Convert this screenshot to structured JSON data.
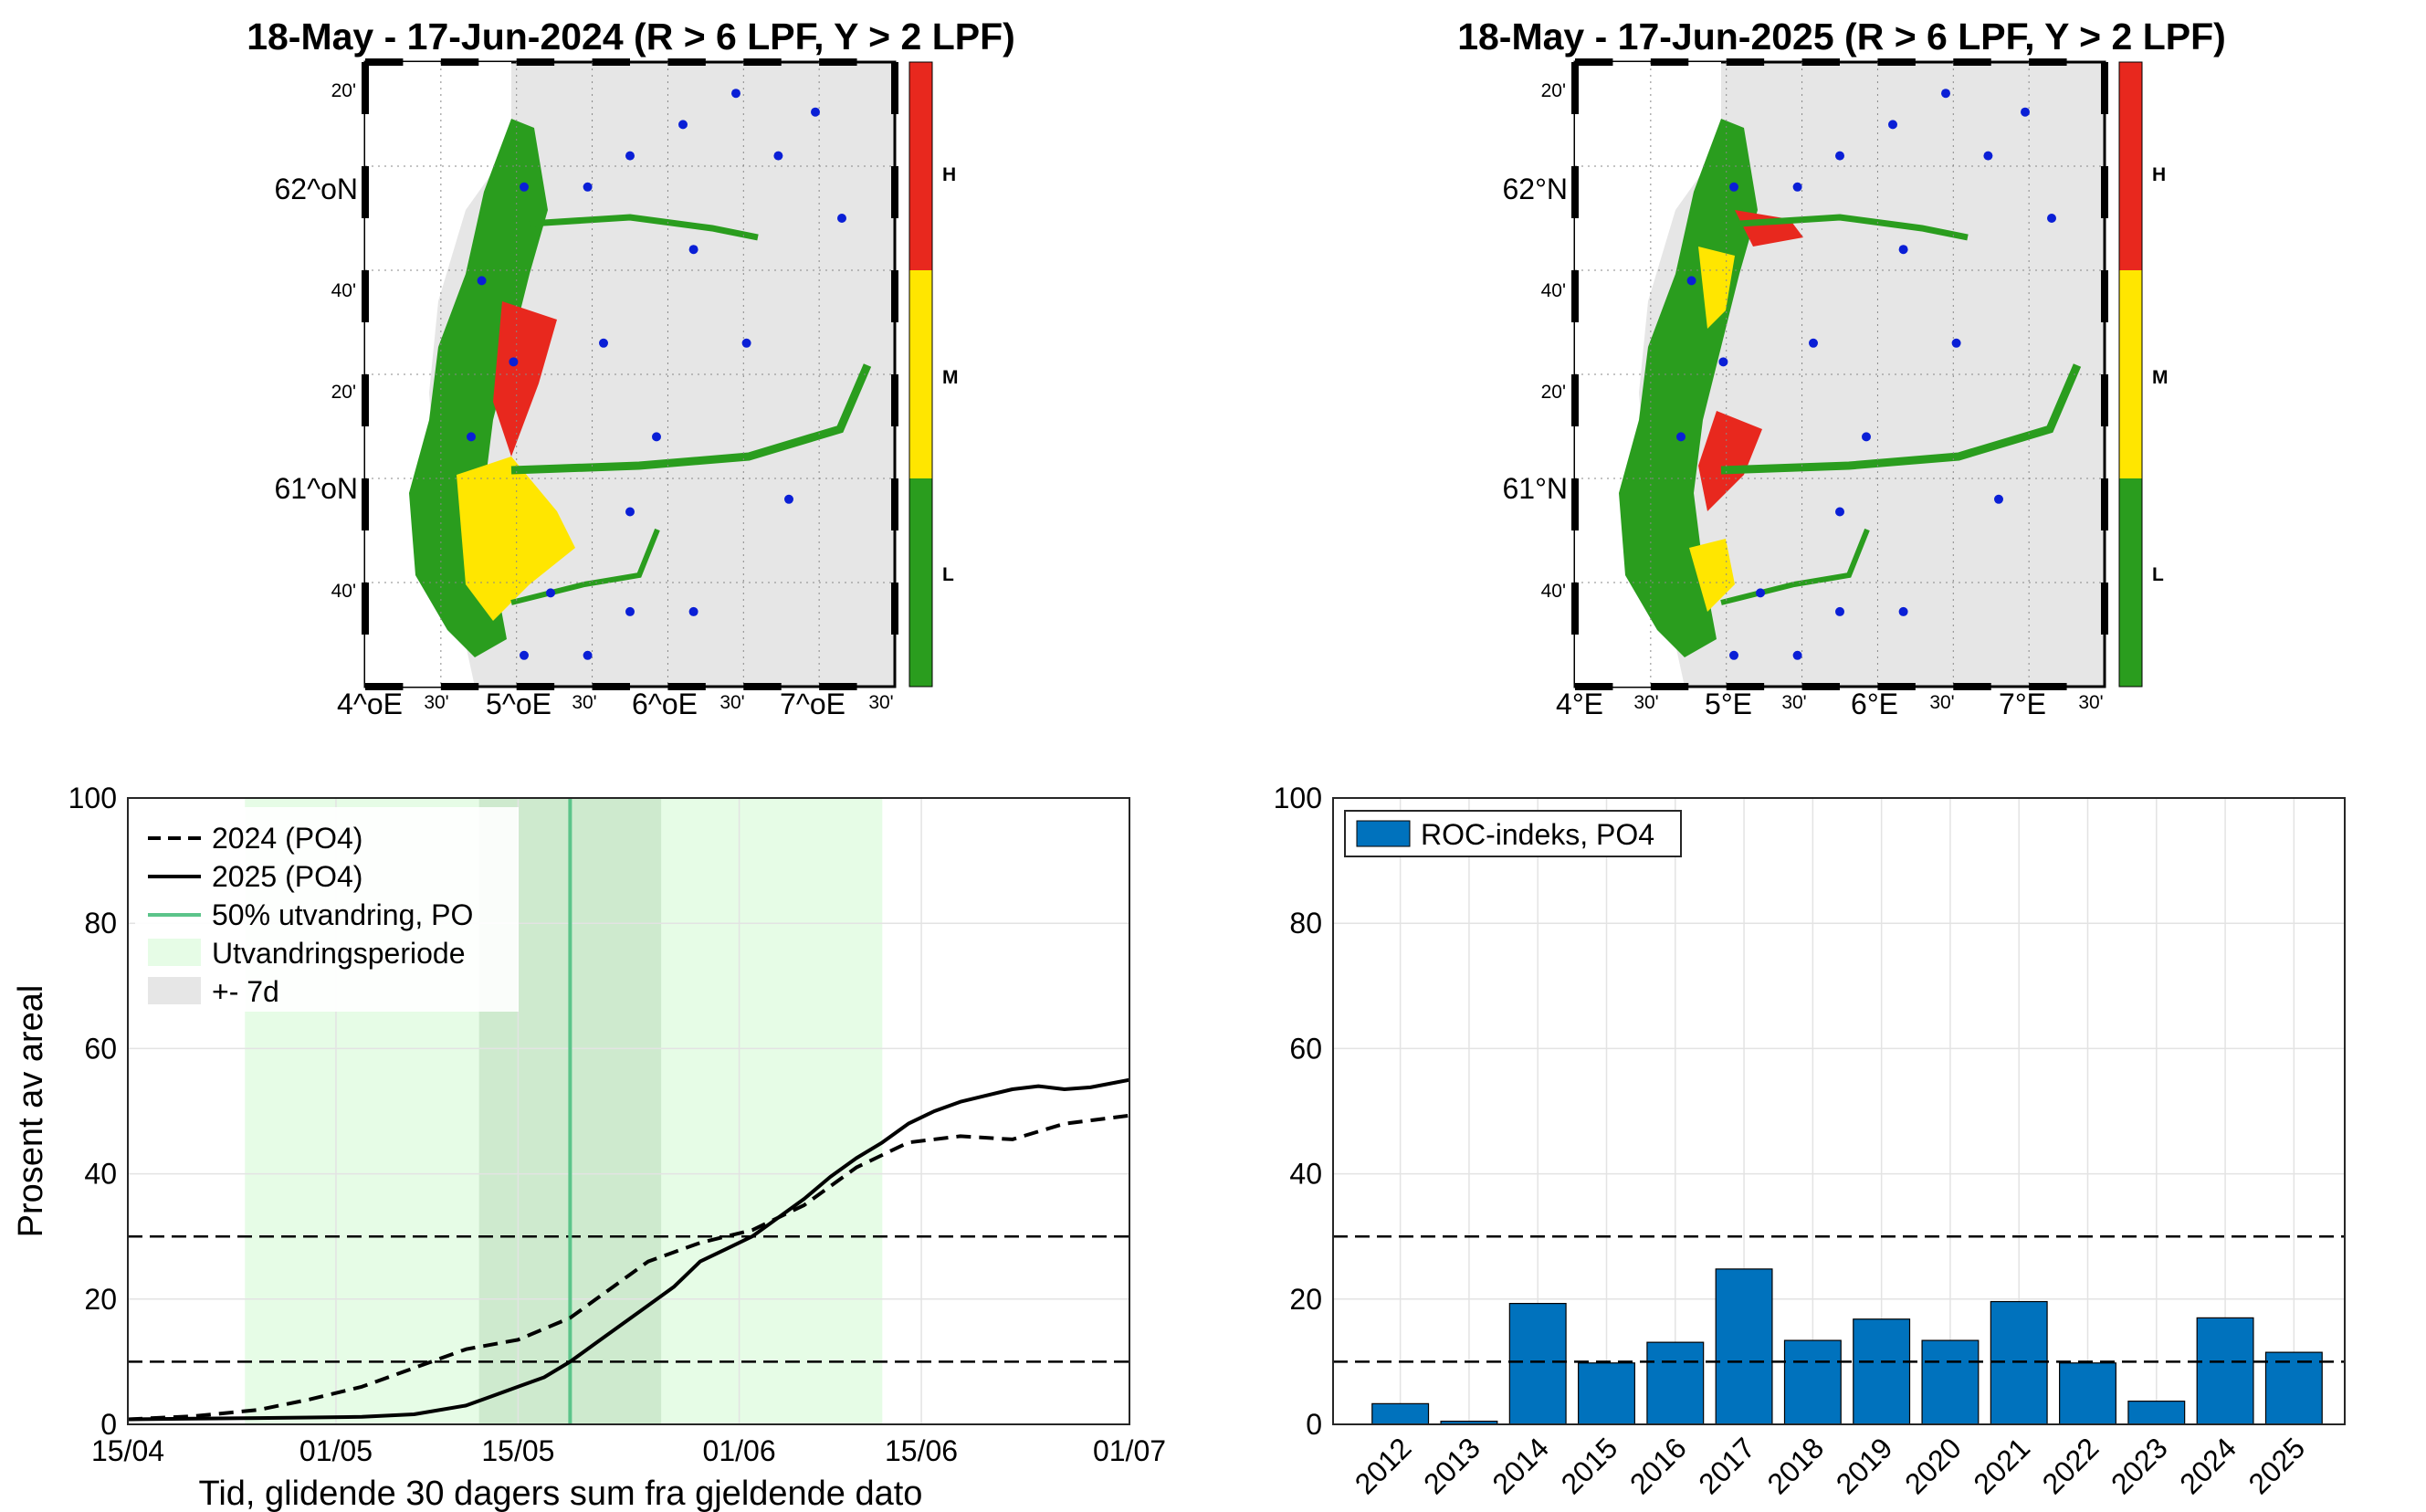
{
  "maps": [
    {
      "title": "18-May - 17-Jun-2024  (R > 6 LPF, Y > 2 LPF)",
      "lat_labels": [
        "20'",
        "62^oN",
        "40'",
        "20'",
        "61^oN",
        "40'"
      ],
      "lon_labels": [
        "4^oE",
        "30'",
        "5^oE",
        "30'",
        "6^oE",
        "30'",
        "7^oE",
        "30'"
      ],
      "colorbar": [
        {
          "label": "H",
          "color": "#e8281e"
        },
        {
          "label": "M",
          "color": "#ffe600"
        },
        {
          "label": "L",
          "color": "#2a9d1e"
        }
      ]
    },
    {
      "title": "18-May - 17-Jun-2025  (R > 6 LPF, Y > 2 LPF)",
      "lat_labels": [
        "20'",
        "62°N",
        "40'",
        "20'",
        "61°N",
        "40'"
      ],
      "lon_labels": [
        "4°E",
        "30'",
        "5°E",
        "30'",
        "6°E",
        "30'",
        "7°E",
        "30'"
      ],
      "colorbar": [
        {
          "label": "H",
          "color": "#e8281e"
        },
        {
          "label": "M",
          "color": "#ffe600"
        },
        {
          "label": "L",
          "color": "#2a9d1e"
        }
      ]
    }
  ],
  "chart_data": [
    {
      "type": "line",
      "xlabel": "Tid, glidende 30 dagers sum fra gjeldende dato",
      "ylabel": "Prosent av areal",
      "xlim": [
        0,
        77
      ],
      "ylim": [
        0,
        100
      ],
      "xticks": [
        {
          "x": 0,
          "label": "15/04"
        },
        {
          "x": 16,
          "label": "01/05"
        },
        {
          "x": 30,
          "label": "15/05"
        },
        {
          "x": 47,
          "label": "01/06"
        },
        {
          "x": 61,
          "label": "15/06"
        },
        {
          "x": 77,
          "label": "01/07"
        }
      ],
      "yticks": [
        0,
        20,
        40,
        60,
        80,
        100
      ],
      "thresholds": [
        10,
        30
      ],
      "migration_period": [
        9,
        58
      ],
      "plus_minus_7d": [
        27,
        41
      ],
      "migration_50pct": 34,
      "legend": [
        "2024 (PO4)",
        "2025 (PO4)",
        "50% utvandring, PO",
        "Utvandringsperiode",
        "+- 7d"
      ],
      "series": [
        {
          "name": "2024 (PO4)",
          "style": "dashed",
          "x": [
            0,
            5,
            10,
            14,
            18,
            22,
            26,
            30,
            34,
            36,
            38,
            40,
            44,
            48,
            52,
            56,
            60,
            64,
            68,
            72,
            77
          ],
          "y": [
            0.8,
            1.3,
            2.3,
            4,
            6,
            9,
            12,
            13.5,
            17,
            20,
            23,
            26,
            29,
            31,
            35,
            41,
            45,
            46,
            45.5,
            48,
            49.3
          ]
        },
        {
          "name": "2025 (PO4)",
          "style": "solid",
          "x": [
            0,
            5,
            10,
            14,
            18,
            22,
            26,
            28,
            30,
            32,
            34,
            36,
            38,
            40,
            42,
            44,
            46,
            48,
            50,
            52,
            54,
            56,
            58,
            60,
            62,
            64,
            66,
            68,
            70,
            72,
            74,
            77
          ],
          "y": [
            0.8,
            0.9,
            1,
            1.1,
            1.2,
            1.6,
            3,
            4.5,
            6,
            7.5,
            10,
            13,
            16,
            19,
            22,
            26,
            28,
            30,
            33,
            36,
            39.5,
            42.5,
            45,
            48,
            50,
            51.5,
            52.5,
            53.5,
            54,
            53.5,
            53.8,
            55
          ]
        }
      ]
    },
    {
      "type": "bar",
      "legend": "ROC-indeks, PO4",
      "categories": [
        "2012",
        "2013",
        "2014",
        "2015",
        "2016",
        "2017",
        "2018",
        "2019",
        "2020",
        "2021",
        "2022",
        "2023",
        "2024",
        "2025"
      ],
      "values": [
        3.3,
        0.5,
        19.3,
        9.8,
        13.1,
        24.8,
        13.4,
        16.8,
        13.4,
        19.6,
        9.8,
        3.7,
        17.0,
        11.5
      ],
      "ylim": [
        0,
        100
      ],
      "yticks": [
        0,
        20,
        40,
        60,
        80,
        100
      ],
      "thresholds": [
        10,
        30
      ],
      "color": "#0072bd"
    }
  ]
}
